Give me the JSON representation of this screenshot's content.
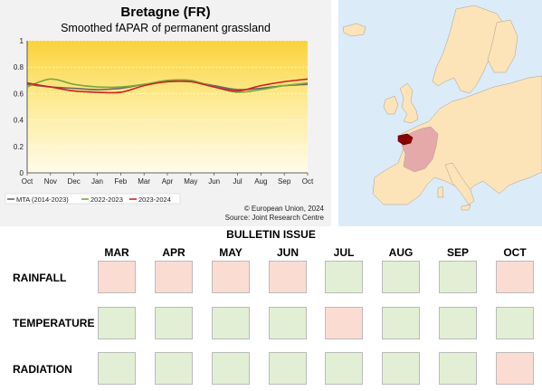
{
  "chart_data": {
    "type": "line",
    "title": "Bretagne (FR)",
    "subtitle": "Smoothed fAPAR of permanent grassland",
    "x": [
      "Oct",
      "Nov",
      "Dec",
      "Jan",
      "Feb",
      "Mar",
      "Apr",
      "May",
      "Jun",
      "Jul",
      "Aug",
      "Sep",
      "Oct"
    ],
    "ylim": [
      0,
      1
    ],
    "yticks": [
      "0",
      "0.2",
      "0.4",
      "0.6",
      "0.8",
      "1"
    ],
    "series": [
      {
        "name": "MTA (2014-2023)",
        "color": "#666666",
        "values": [
          0.67,
          0.65,
          0.64,
          0.63,
          0.64,
          0.67,
          0.69,
          0.69,
          0.66,
          0.63,
          0.64,
          0.66,
          0.67
        ]
      },
      {
        "name": "2022-2023",
        "color": "#7aa83a",
        "values": [
          0.65,
          0.71,
          0.67,
          0.65,
          0.65,
          0.67,
          0.7,
          0.7,
          0.65,
          0.61,
          0.63,
          0.66,
          0.68
        ]
      },
      {
        "name": "2023-2024",
        "color": "#d21f1f",
        "values": [
          0.68,
          0.65,
          0.62,
          0.61,
          0.61,
          0.66,
          0.69,
          0.69,
          0.65,
          0.62,
          0.66,
          0.69,
          0.71
        ]
      }
    ],
    "legend_position": "bottom-left",
    "background": "yellow gradient"
  },
  "credits": {
    "line1": "© European Union, 2024",
    "line2": "Source: Joint Research Centre"
  },
  "map": {
    "highlight_region": "Bretagne",
    "highlight_color": "#8b0000",
    "country_highlight_color": "#e6a9aa",
    "land_color": "#fde3b8",
    "water_color": "#dcebf8"
  },
  "bulletin": {
    "title": "BULLETIN ISSUE",
    "months": [
      "MAR",
      "APR",
      "MAY",
      "JUN",
      "JUL",
      "AUG",
      "SEP",
      "OCT"
    ],
    "rows": [
      {
        "label": "RAINFALL",
        "status": [
          "neg",
          "neg",
          "neg",
          "neg",
          "pos",
          "pos",
          "pos",
          "neg"
        ]
      },
      {
        "label": "TEMPERATURE",
        "status": [
          "pos",
          "pos",
          "pos",
          "pos",
          "neg",
          "pos",
          "pos",
          "pos"
        ]
      },
      {
        "label": "RADIATION",
        "status": [
          "pos",
          "pos",
          "pos",
          "pos",
          "pos",
          "pos",
          "pos",
          "neg"
        ]
      }
    ],
    "colors": {
      "pos": "#e2efd4",
      "neg": "#fbdcd2"
    }
  }
}
